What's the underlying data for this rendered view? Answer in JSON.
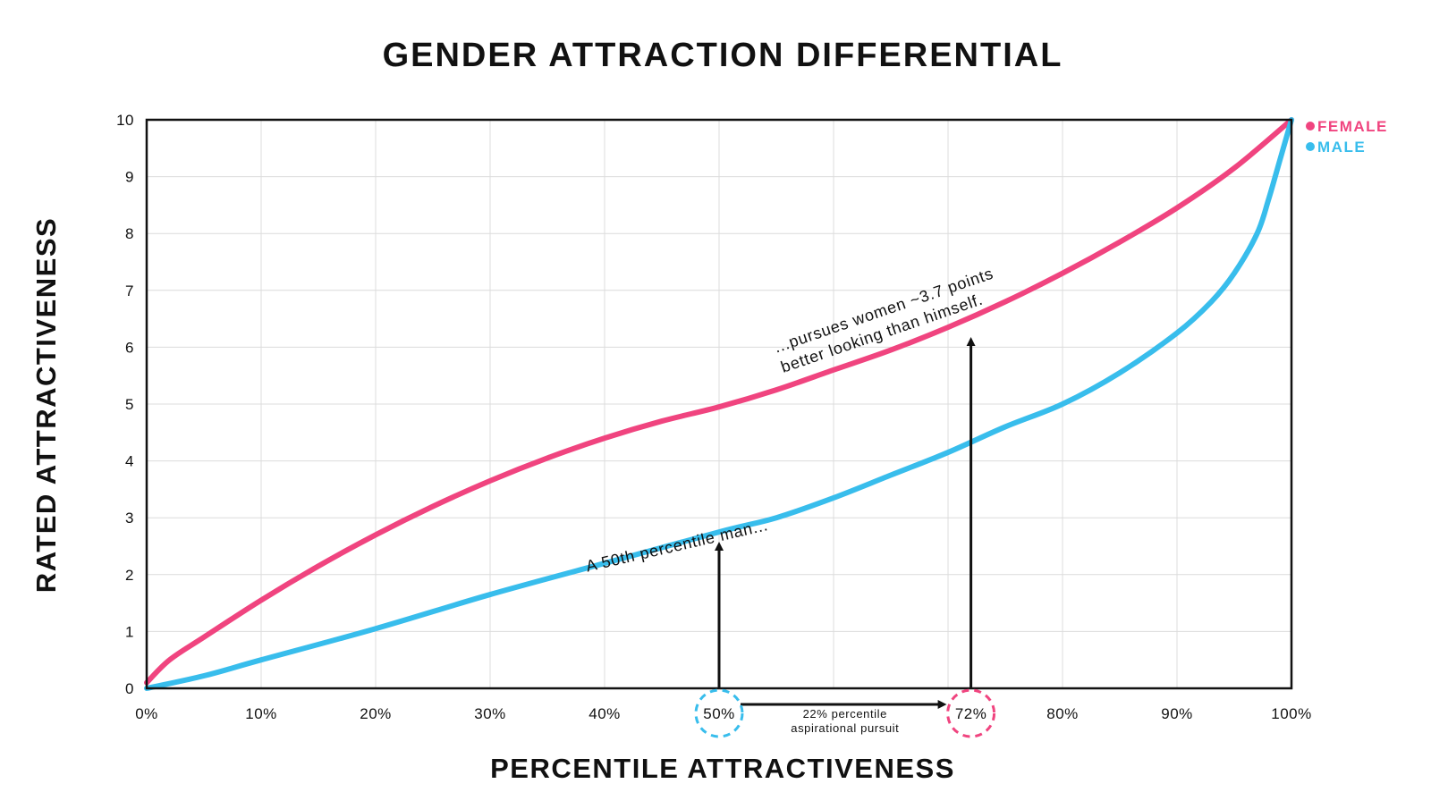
{
  "chart_data": {
    "type": "line",
    "title": "GENDER ATTRACTION DIFFERENTIAL",
    "xlabel": "PERCENTILE ATTRACTIVENESS",
    "ylabel": "RATED ATTRACTIVENESS",
    "xlim": [
      0,
      100
    ],
    "ylim": [
      0,
      10
    ],
    "grid": true,
    "legend_position": "top-right",
    "x_ticks": [
      "0%",
      "10%",
      "20%",
      "30%",
      "40%",
      "50%",
      "60%",
      "70%",
      "80%",
      "90%",
      "100%"
    ],
    "y_ticks": [
      "0",
      "1",
      "2",
      "3",
      "4",
      "5",
      "6",
      "7",
      "8",
      "9",
      "10"
    ],
    "series": [
      {
        "name": "FEMALE",
        "color": "#f0447f",
        "x": [
          0,
          2,
          5,
          10,
          15,
          20,
          25,
          30,
          35,
          40,
          45,
          50,
          55,
          60,
          65,
          70,
          75,
          80,
          85,
          90,
          95,
          100
        ],
        "y": [
          0.1,
          0.5,
          0.9,
          1.55,
          2.15,
          2.7,
          3.2,
          3.65,
          4.05,
          4.4,
          4.7,
          4.95,
          5.25,
          5.6,
          5.95,
          6.35,
          6.8,
          7.3,
          7.85,
          8.45,
          9.15,
          10.0
        ]
      },
      {
        "name": "MALE",
        "color": "#38bdec",
        "x": [
          0,
          5,
          10,
          20,
          30,
          40,
          50,
          55,
          60,
          65,
          70,
          75,
          80,
          85,
          90,
          93,
          95,
          97,
          98,
          99,
          100
        ],
        "y": [
          0.0,
          0.22,
          0.5,
          1.05,
          1.65,
          2.2,
          2.75,
          3.0,
          3.35,
          3.75,
          4.15,
          4.6,
          5.0,
          5.55,
          6.25,
          6.8,
          7.3,
          8.0,
          8.6,
          9.3,
          10.0
        ]
      }
    ],
    "annotations": {
      "male_note": "A 50th percentile man...",
      "female_note_line1": "...pursues women ~3.7 points",
      "female_note_line2": "better looking than himself.",
      "gap_line1": "22% percentile",
      "gap_line2": "aspirational pursuit",
      "male_marker_label": "50%",
      "female_marker_label": "72%",
      "male_marker_x": 50,
      "female_marker_x": 72,
      "male_arrow_top_y": 2.5,
      "female_arrow_top_y": 6.1
    }
  }
}
